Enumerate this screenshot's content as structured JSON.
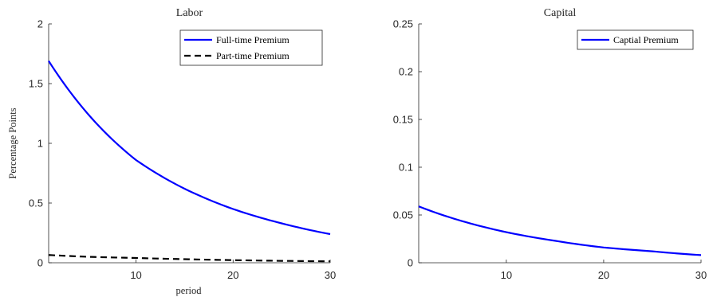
{
  "chart_data": [
    {
      "type": "line",
      "title": "Labor",
      "xlabel": "period",
      "ylabel": "Percentage Points",
      "xlim": [
        1,
        30
      ],
      "ylim": [
        0,
        2
      ],
      "xticks": [
        10,
        20,
        30
      ],
      "xtick_labels": [
        "10",
        "20",
        "30"
      ],
      "yticks": [
        0,
        0.5,
        1,
        1.5,
        2
      ],
      "ytick_labels": [
        "0",
        "0.5",
        "1",
        "1.5",
        "2"
      ],
      "grid": false,
      "legend": "top-right",
      "series": [
        {
          "name": "Full-time Premium",
          "color": "#0000ff",
          "style": "solid",
          "x": [
            1,
            5,
            10,
            15,
            20,
            25,
            30
          ],
          "values": [
            1.69,
            1.25,
            0.86,
            0.62,
            0.45,
            0.33,
            0.24
          ]
        },
        {
          "name": "Part-time Premium",
          "color": "#000000",
          "style": "dashed",
          "x": [
            1,
            5,
            10,
            15,
            20,
            25,
            30
          ],
          "values": [
            0.065,
            0.05,
            0.04,
            0.03,
            0.022,
            0.016,
            0.012
          ]
        }
      ]
    },
    {
      "type": "line",
      "title": "Capital",
      "xlabel": "",
      "ylabel": "",
      "xlim": [
        1,
        30
      ],
      "ylim": [
        0,
        0.25
      ],
      "xticks": [
        10,
        20,
        30
      ],
      "xtick_labels": [
        "10",
        "20",
        "30"
      ],
      "yticks": [
        0,
        0.05,
        0.1,
        0.15,
        0.2,
        0.25
      ],
      "ytick_labels": [
        "0",
        "0.05",
        "0.1",
        "0.15",
        "0.2",
        "0.25"
      ],
      "grid": false,
      "legend": "top-right",
      "series": [
        {
          "name": "Captial Premium",
          "color": "#0000ff",
          "style": "solid",
          "x": [
            1,
            5,
            10,
            15,
            20,
            25,
            30
          ],
          "values": [
            0.059,
            0.045,
            0.032,
            0.023,
            0.016,
            0.012,
            0.008
          ]
        }
      ]
    }
  ]
}
